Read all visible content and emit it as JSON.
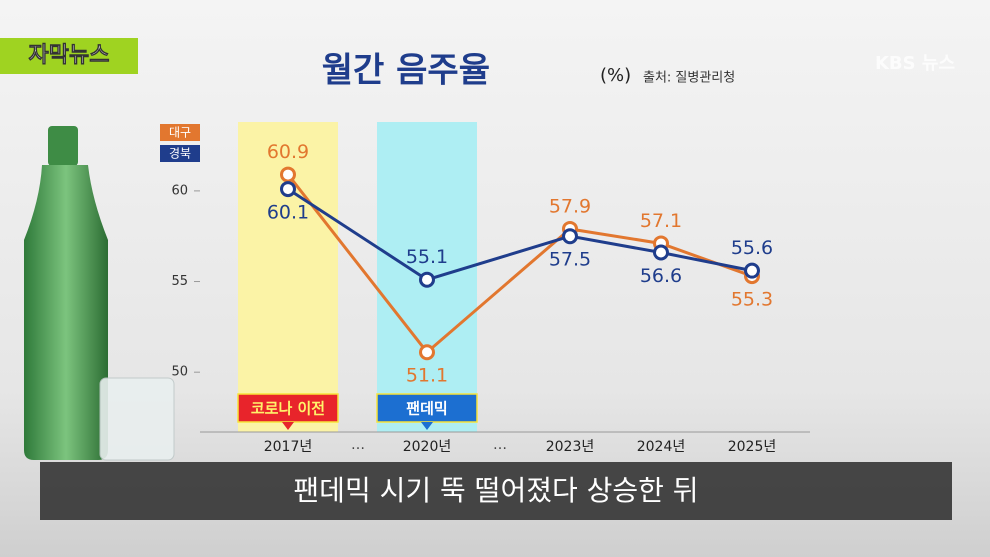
{
  "logo": "자막뉴스",
  "broadcaster": "KBS 뉴스",
  "subtitle": "팬데믹 시기 뚝 떨어졌다 상승한 뒤",
  "chart_data": {
    "type": "line",
    "title": "월간 음주율",
    "unit": "(%)",
    "source": "출처: 질병관리청",
    "categories": [
      "2017년",
      "2020년",
      "2023년",
      "2024년",
      "2025년"
    ],
    "breaks": [
      "…",
      "…"
    ],
    "highlights": [
      {
        "category": 0,
        "label": "코로나 이전",
        "color": "#fbf3a6",
        "tag_color": "#e8242b"
      },
      {
        "category": 1,
        "label": "팬데믹",
        "color": "#aeeef3",
        "tag_color": "#1c6fd1"
      }
    ],
    "series": [
      {
        "name": "대구",
        "color": "#e2772f",
        "values": [
          60.9,
          51.1,
          57.9,
          57.1,
          55.3
        ]
      },
      {
        "name": "경북",
        "color": "#1f3d8c",
        "values": [
          60.1,
          55.1,
          57.5,
          56.6,
          55.6
        ]
      }
    ],
    "ylim": [
      46.7,
      63.8
    ],
    "yticks": [
      50,
      55,
      60
    ]
  }
}
